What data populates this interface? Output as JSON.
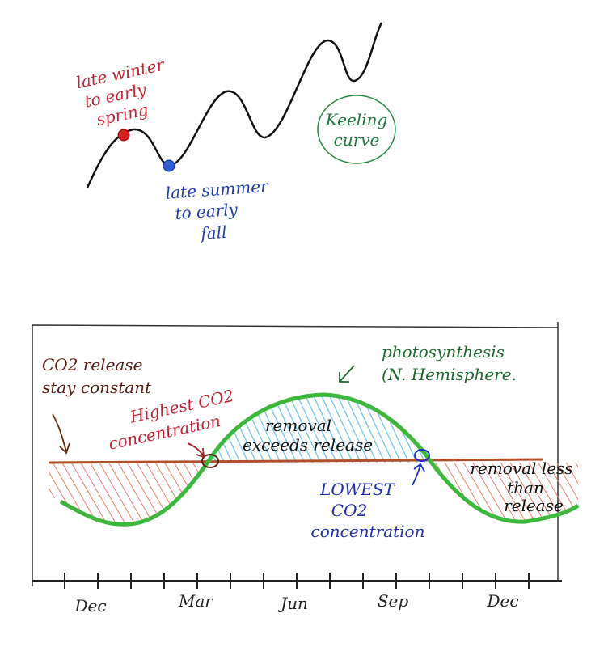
{
  "keeling": {
    "winter_lines": [
      "late winter",
      "to early",
      "spring"
    ],
    "summer_lines": [
      "late summer",
      "to early",
      "fall"
    ],
    "label_lines": [
      "Keeling",
      "curve"
    ]
  },
  "seasonal": {
    "release_lines": [
      "CO2 release",
      "stay constant"
    ],
    "photosynthesis_lines": [
      "photosynthesis",
      "(N. Hemisphere."
    ],
    "highest_lines": [
      "Highest CO2",
      "concentration"
    ],
    "exceeds_lines": [
      "removal",
      "exceeds release"
    ],
    "lowest_lines": [
      "LOWEST",
      "CO2",
      "concentration"
    ],
    "less_lines": [
      "removal less",
      "than",
      "release"
    ],
    "months": [
      "Dec",
      "Mar",
      "Jun",
      "Sep",
      "Dec"
    ]
  }
}
